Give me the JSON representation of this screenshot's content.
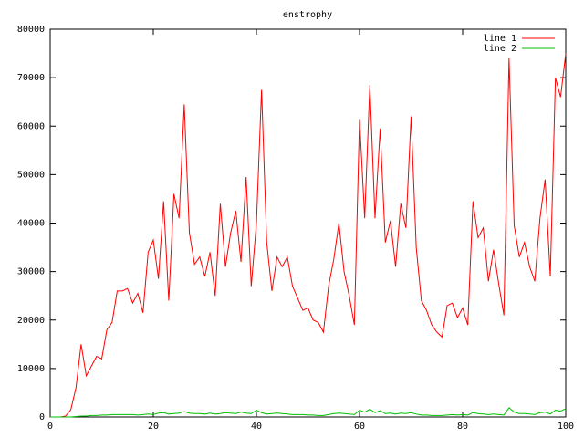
{
  "chart_data": {
    "type": "line",
    "title": "enstrophy",
    "x": [
      0,
      1,
      2,
      3,
      4,
      5,
      6,
      7,
      8,
      9,
      10,
      11,
      12,
      13,
      14,
      15,
      16,
      17,
      18,
      19,
      20,
      21,
      22,
      23,
      24,
      25,
      26,
      27,
      28,
      29,
      30,
      31,
      32,
      33,
      34,
      35,
      36,
      37,
      38,
      39,
      40,
      41,
      42,
      43,
      44,
      45,
      46,
      47,
      48,
      49,
      50,
      51,
      52,
      53,
      54,
      55,
      56,
      57,
      58,
      59,
      60,
      61,
      62,
      63,
      64,
      65,
      66,
      67,
      68,
      69,
      70,
      71,
      72,
      73,
      74,
      75,
      76,
      77,
      78,
      79,
      80,
      81,
      82,
      83,
      84,
      85,
      86,
      87,
      88,
      89,
      90,
      91,
      92,
      93,
      94,
      95,
      96,
      97,
      98,
      99,
      100
    ],
    "series": [
      {
        "name": "line 1",
        "color": "#ff0000",
        "values": [
          0,
          0,
          0,
          200,
          1500,
          6000,
          15000,
          8500,
          10500,
          12500,
          12000,
          18000,
          19500,
          26000,
          26000,
          26500,
          23500,
          25500,
          21500,
          34000,
          36500,
          28500,
          44500,
          24000,
          46000,
          41000,
          64500,
          38000,
          31500,
          33000,
          29000,
          34000,
          25000,
          44000,
          31000,
          38000,
          42500,
          32000,
          49500,
          27000,
          40000,
          67500,
          36000,
          26000,
          33000,
          31000,
          33000,
          27000,
          24500,
          22000,
          22500,
          20000,
          19500,
          17500,
          27000,
          32500,
          40000,
          30000,
          25000,
          19000,
          61500,
          41000,
          68500,
          41000,
          59500,
          36000,
          40500,
          31000,
          44000,
          39000,
          62000,
          35000,
          24000,
          22000,
          19000,
          17500,
          16500,
          23000,
          23500,
          20500,
          22500,
          19000,
          44500,
          37000,
          39000,
          28000,
          34500,
          27500,
          21000,
          74000,
          39500,
          33000,
          36000,
          31000,
          28000,
          41000,
          49000,
          29000,
          70000,
          66000,
          75000
        ]
      },
      {
        "name": "line 2",
        "color": "#00c000",
        "values": [
          0,
          0,
          0,
          0,
          0,
          100,
          200,
          200,
          300,
          300,
          400,
          400,
          500,
          500,
          500,
          500,
          500,
          400,
          500,
          600,
          500,
          800,
          900,
          600,
          700,
          800,
          1100,
          800,
          700,
          700,
          600,
          800,
          600,
          700,
          900,
          800,
          700,
          1000,
          800,
          700,
          1400,
          900,
          600,
          700,
          800,
          700,
          600,
          500,
          500,
          500,
          400,
          400,
          300,
          300,
          500,
          700,
          800,
          700,
          600,
          500,
          1400,
          1000,
          1600,
          900,
          1300,
          700,
          800,
          600,
          800,
          700,
          900,
          600,
          400,
          400,
          300,
          300,
          300,
          400,
          500,
          400,
          500,
          400,
          900,
          700,
          600,
          500,
          600,
          500,
          400,
          1900,
          1000,
          700,
          700,
          600,
          500,
          900,
          1000,
          600,
          1400,
          1200,
          1700
        ]
      }
    ],
    "xlim": [
      0,
      100
    ],
    "xticks": [
      0,
      20,
      40,
      60,
      80,
      100
    ],
    "ylim": [
      0,
      80000
    ],
    "yticks": [
      0,
      10000,
      20000,
      30000,
      40000,
      50000,
      60000,
      70000,
      80000
    ]
  }
}
